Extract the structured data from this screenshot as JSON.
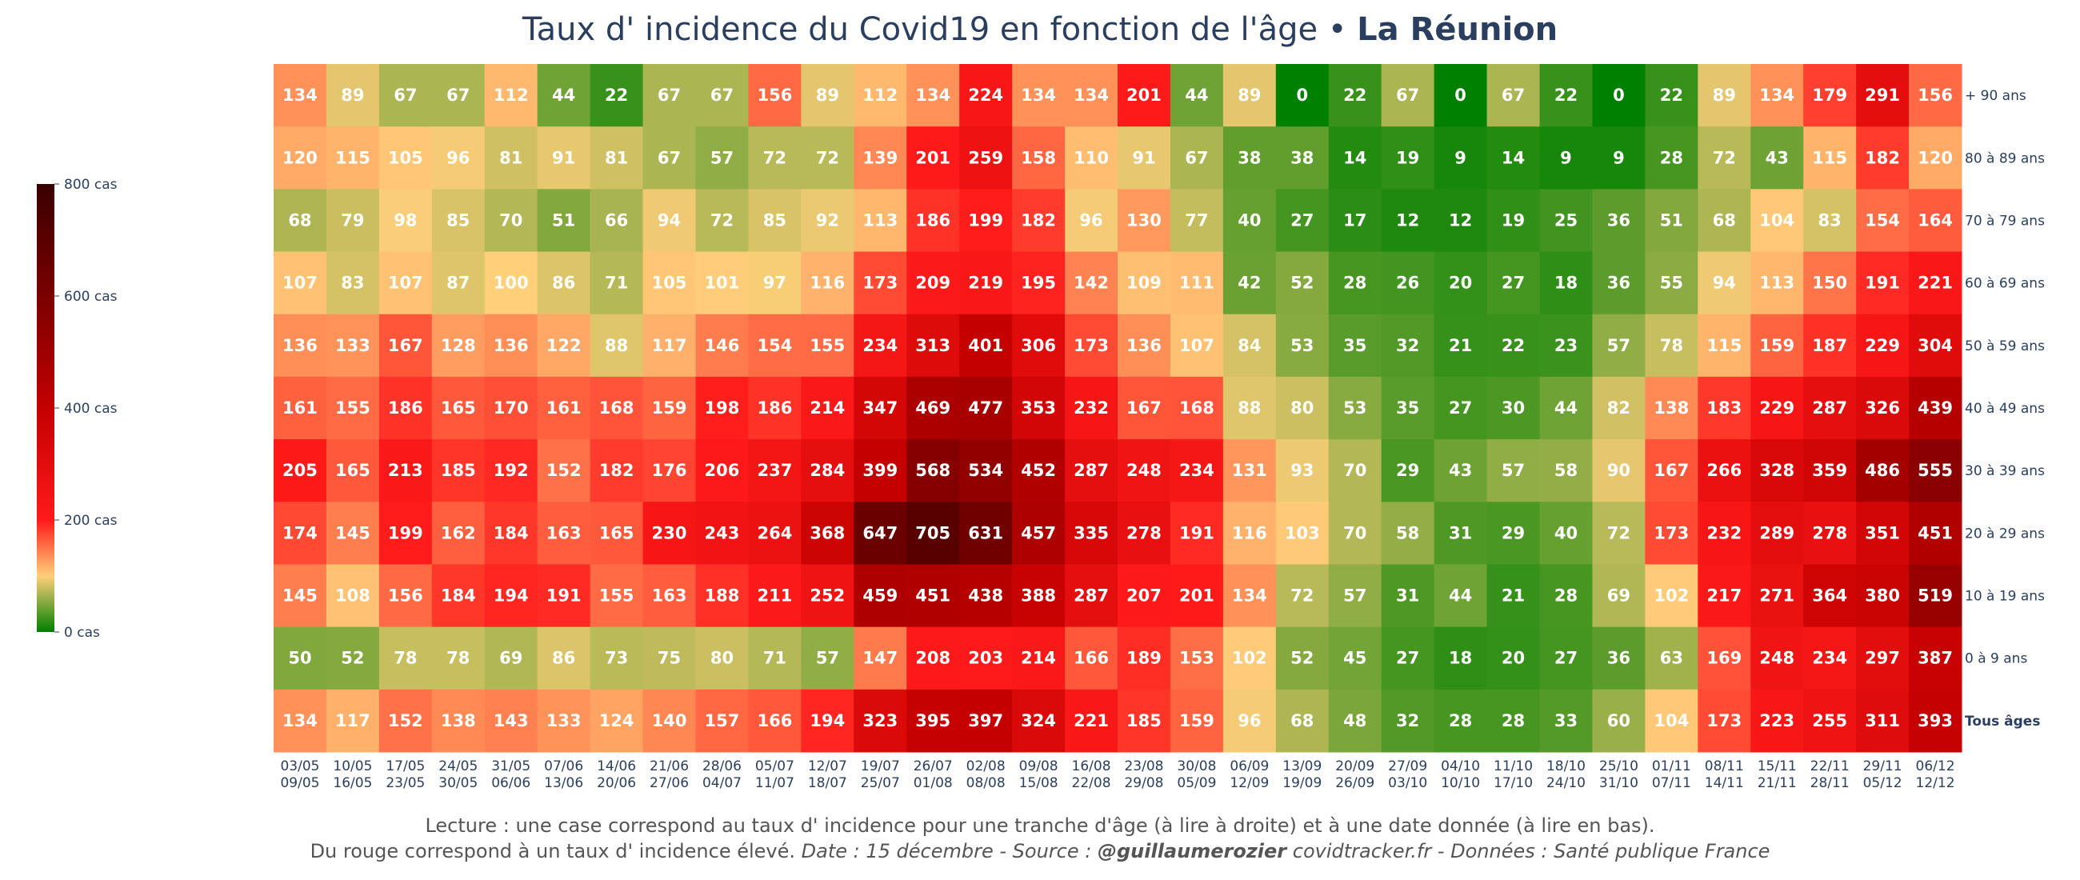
{
  "title": {
    "main": "Taux d' incidence du Covid19 en fonction de l'âge • ",
    "region": "La Réunion"
  },
  "footnote": {
    "line1": "Lecture : une case correspond au taux d' incidence pour une tranche d'âge (à lire à droite) et à une date donnée (à lire en bas).",
    "line2_normal": "Du rouge correspond à un taux d' incidence élevé.  ",
    "line2_date": "Date : 15 décembre - Source : ",
    "line2_author": "@guillaumerozier",
    "line2_rest": " covidtracker.fr - Données : Santé publique France"
  },
  "colorbar": {
    "ticks": [
      {
        "value": 0,
        "label": "0 cas"
      },
      {
        "value": 200,
        "label": "200 cas"
      },
      {
        "value": 400,
        "label": "400 cas"
      },
      {
        "value": 600,
        "label": "600 cas"
      },
      {
        "value": 800,
        "label": "800 cas"
      }
    ],
    "min": 0,
    "max": 800,
    "colors": [
      {
        "pos": 0.0,
        "color": "#008000"
      },
      {
        "pos": 0.125,
        "color": "#ffcf7a"
      },
      {
        "pos": 0.25,
        "color": "#ff1a1a"
      },
      {
        "pos": 0.5,
        "color": "#c40000"
      },
      {
        "pos": 0.75,
        "color": "#7a0000"
      },
      {
        "pos": 1.0,
        "color": "#3a0000"
      }
    ]
  },
  "chart_data": {
    "type": "heatmap",
    "x_top": [
      "03/05",
      "10/05",
      "17/05",
      "24/05",
      "31/05",
      "07/06",
      "14/06",
      "21/06",
      "28/06",
      "05/07",
      "12/07",
      "19/07",
      "26/07",
      "02/08",
      "09/08",
      "16/08",
      "23/08",
      "30/08",
      "06/09",
      "13/09",
      "20/09",
      "27/09",
      "04/10",
      "11/10",
      "18/10",
      "25/10",
      "01/11",
      "08/11",
      "15/11",
      "22/11",
      "29/11",
      "06/12"
    ],
    "x_bottom": [
      "09/05",
      "16/05",
      "23/05",
      "30/05",
      "06/06",
      "13/06",
      "20/06",
      "27/06",
      "04/07",
      "11/07",
      "18/07",
      "25/07",
      "01/08",
      "08/08",
      "15/08",
      "22/08",
      "29/08",
      "05/09",
      "12/09",
      "19/09",
      "26/09",
      "03/10",
      "10/10",
      "17/10",
      "24/10",
      "31/10",
      "07/11",
      "14/11",
      "21/11",
      "28/11",
      "05/12",
      "12/12"
    ],
    "rows": [
      {
        "label": "+ 90 ans",
        "bold": false,
        "values": [
          134,
          89,
          67,
          67,
          112,
          44,
          22,
          67,
          67,
          156,
          89,
          112,
          134,
          224,
          134,
          134,
          201,
          44,
          89,
          0,
          22,
          67,
          0,
          67,
          22,
          0,
          22,
          89,
          134,
          179,
          291,
          156
        ]
      },
      {
        "label": "80 à 89 ans",
        "bold": false,
        "values": [
          120,
          115,
          105,
          96,
          81,
          91,
          81,
          67,
          57,
          72,
          72,
          139,
          201,
          259,
          158,
          110,
          91,
          67,
          38,
          38,
          14,
          19,
          9,
          14,
          9,
          9,
          28,
          72,
          43,
          115,
          182,
          120
        ]
      },
      {
        "label": "70 à 79 ans",
        "bold": false,
        "values": [
          68,
          79,
          98,
          85,
          70,
          51,
          66,
          94,
          72,
          85,
          92,
          113,
          186,
          199,
          182,
          96,
          130,
          77,
          40,
          27,
          17,
          12,
          12,
          19,
          25,
          36,
          51,
          68,
          104,
          83,
          154,
          164
        ]
      },
      {
        "label": "60 à 69 ans",
        "bold": false,
        "values": [
          107,
          83,
          107,
          87,
          100,
          86,
          71,
          105,
          101,
          97,
          116,
          173,
          209,
          219,
          195,
          142,
          109,
          111,
          42,
          52,
          28,
          26,
          20,
          27,
          18,
          36,
          55,
          94,
          113,
          150,
          191,
          221
        ]
      },
      {
        "label": "50 à 59 ans",
        "bold": false,
        "values": [
          136,
          133,
          167,
          128,
          136,
          122,
          88,
          117,
          146,
          154,
          155,
          234,
          313,
          401,
          306,
          173,
          136,
          107,
          84,
          53,
          35,
          32,
          21,
          22,
          23,
          57,
          78,
          115,
          159,
          187,
          229,
          304
        ]
      },
      {
        "label": "40 à 49 ans",
        "bold": false,
        "values": [
          161,
          155,
          186,
          165,
          170,
          161,
          168,
          159,
          198,
          186,
          214,
          347,
          469,
          477,
          353,
          232,
          167,
          168,
          88,
          80,
          53,
          35,
          27,
          30,
          44,
          82,
          138,
          183,
          229,
          287,
          326,
          439
        ]
      },
      {
        "label": "30 à 39 ans",
        "bold": false,
        "values": [
          205,
          165,
          213,
          185,
          192,
          152,
          182,
          176,
          206,
          237,
          284,
          399,
          568,
          534,
          452,
          287,
          248,
          234,
          131,
          93,
          70,
          29,
          43,
          57,
          58,
          90,
          167,
          266,
          328,
          359,
          486,
          555
        ]
      },
      {
        "label": "20 à 29 ans",
        "bold": false,
        "values": [
          174,
          145,
          199,
          162,
          184,
          163,
          165,
          230,
          243,
          264,
          368,
          647,
          705,
          631,
          457,
          335,
          278,
          191,
          116,
          103,
          70,
          58,
          31,
          29,
          40,
          72,
          173,
          232,
          289,
          278,
          351,
          451
        ]
      },
      {
        "label": "10 à 19 ans",
        "bold": false,
        "values": [
          145,
          108,
          156,
          184,
          194,
          191,
          155,
          163,
          188,
          211,
          252,
          459,
          451,
          438,
          388,
          287,
          207,
          201,
          134,
          72,
          57,
          31,
          44,
          21,
          28,
          69,
          102,
          217,
          271,
          364,
          380,
          519
        ]
      },
      {
        "label": "0 à 9 ans",
        "bold": false,
        "values": [
          50,
          52,
          78,
          78,
          69,
          86,
          73,
          75,
          80,
          71,
          57,
          147,
          208,
          203,
          214,
          166,
          189,
          153,
          102,
          52,
          45,
          27,
          18,
          20,
          27,
          36,
          63,
          169,
          248,
          234,
          297,
          387
        ]
      },
      {
        "label": "Tous âges",
        "bold": true,
        "values": [
          134,
          117,
          152,
          138,
          143,
          133,
          124,
          140,
          157,
          166,
          194,
          323,
          395,
          397,
          324,
          221,
          185,
          159,
          96,
          68,
          48,
          32,
          28,
          28,
          33,
          60,
          104,
          173,
          223,
          255,
          311,
          393
        ]
      }
    ]
  }
}
